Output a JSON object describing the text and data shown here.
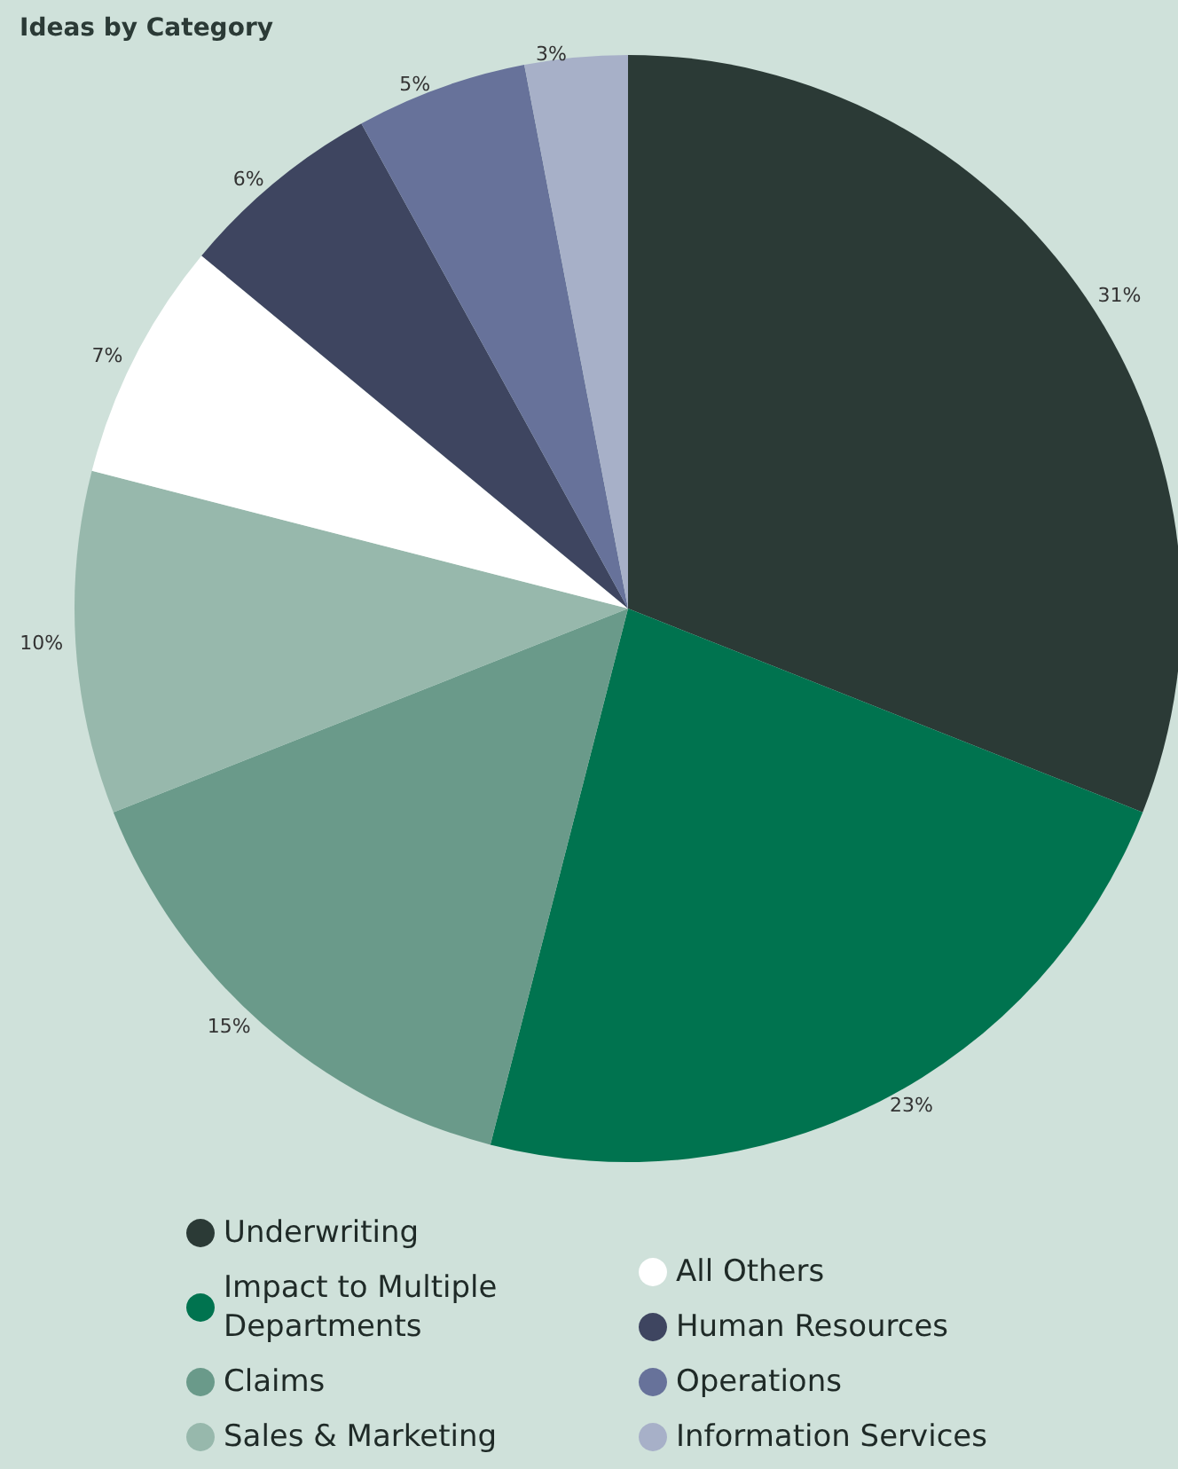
{
  "chart_data": {
    "type": "pie",
    "title": "Ideas by Category",
    "categories": [
      "Underwriting",
      "Impact to Multiple Departments",
      "Claims",
      "Sales & Marketing",
      "All Others",
      "Human Resources",
      "Operations",
      "Information Services"
    ],
    "values": [
      31,
      23,
      15,
      10,
      7,
      6,
      5,
      3
    ],
    "value_labels": [
      "31%",
      "23%",
      "15%",
      "10%",
      "7%",
      "6%",
      "5%",
      "3%"
    ],
    "colors": [
      "#2b3a36",
      "#00734f",
      "#6a9a8a",
      "#97b8ac",
      "#ffffff",
      "#3e4560",
      "#67729a",
      "#a7b0c8"
    ],
    "legend": "bottom"
  }
}
